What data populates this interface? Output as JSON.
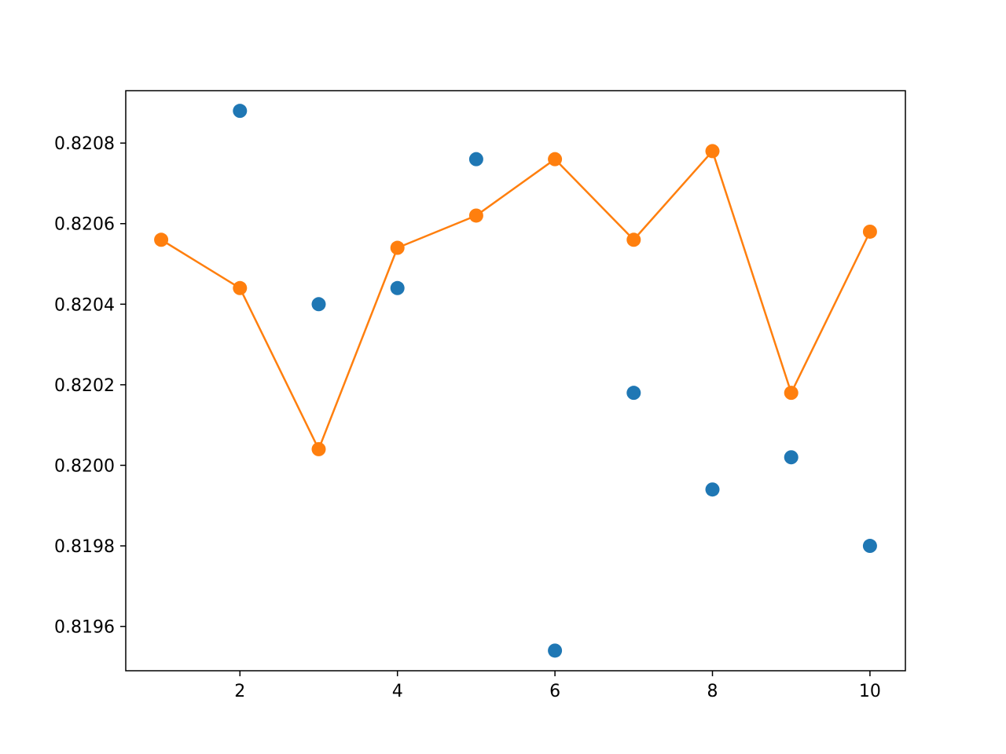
{
  "chart_data": {
    "type": "scatter",
    "title": "",
    "xlabel": "",
    "ylabel": "",
    "xlim": [
      0.55,
      10.45
    ],
    "ylim": [
      0.81949,
      0.82093
    ],
    "x_ticks": [
      2,
      4,
      6,
      8,
      10
    ],
    "x_tick_labels": [
      "2",
      "4",
      "6",
      "8",
      "10"
    ],
    "y_ticks": [
      0.8196,
      0.8198,
      0.82,
      0.8202,
      0.8204,
      0.8206,
      0.8208
    ],
    "y_tick_labels": [
      "0.8196",
      "0.8198",
      "0.8200",
      "0.8202",
      "0.8204",
      "0.8206",
      "0.8208"
    ],
    "grid": false,
    "x": [
      1,
      2,
      3,
      4,
      5,
      6,
      7,
      8,
      9,
      10
    ],
    "series": [
      {
        "style": "markers",
        "color": "#1f77b4",
        "values": [
          null,
          0.82088,
          0.8204,
          0.82044,
          0.82076,
          0.81954,
          0.82018,
          0.81994,
          0.82002,
          0.8198
        ]
      },
      {
        "style": "line+markers",
        "color": "#ff7f0e",
        "values": [
          0.82056,
          0.82044,
          0.82004,
          0.82054,
          0.82062,
          0.82076,
          0.82056,
          0.82078,
          0.82018,
          0.82058
        ]
      }
    ]
  }
}
